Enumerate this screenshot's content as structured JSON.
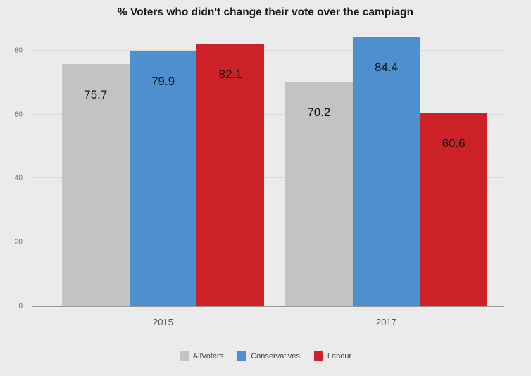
{
  "chart_data": {
    "type": "bar",
    "title": "% Voters who didn't change their vote over the campiagn",
    "categories": [
      "2015",
      "2017"
    ],
    "series": [
      {
        "name": "AllVoters",
        "color": "#c3c3c3",
        "values": [
          75.7,
          70.2
        ]
      },
      {
        "name": "Conservatives",
        "color": "#4e90cd",
        "values": [
          79.9,
          84.4
        ]
      },
      {
        "name": "Labour",
        "color": "#cc2127",
        "values": [
          82.1,
          60.6
        ]
      }
    ],
    "yticks": [
      0,
      20,
      40,
      60,
      80
    ],
    "ylim": [
      0,
      87
    ],
    "xlabel": "",
    "ylabel": "",
    "grid": true,
    "legend_position": "bottom",
    "background_color": "#ebebeb",
    "value_label_decimals": 1
  }
}
